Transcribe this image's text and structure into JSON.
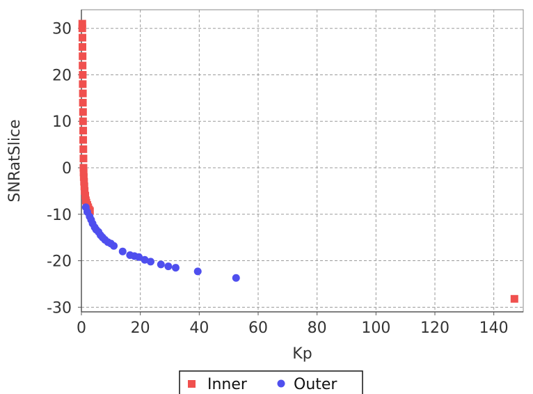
{
  "chart_data": {
    "type": "scatter",
    "title": "",
    "xlabel": "Kp",
    "ylabel": "SNRatSlice",
    "xlim": [
      0,
      150
    ],
    "ylim": [
      -31,
      34
    ],
    "xticks": [
      0,
      20,
      40,
      60,
      80,
      100,
      120,
      140
    ],
    "yticks": [
      -30,
      -20,
      -10,
      0,
      10,
      20,
      30
    ],
    "grid": true,
    "legend_position": "bottom",
    "series": [
      {
        "name": "Inner",
        "marker": "square",
        "color": "#f0504e",
        "points": [
          [
            0.3,
            31
          ],
          [
            0.3,
            30
          ],
          [
            0.35,
            28
          ],
          [
            0.35,
            26
          ],
          [
            0.4,
            24
          ],
          [
            0.4,
            22
          ],
          [
            0.45,
            20
          ],
          [
            0.45,
            18
          ],
          [
            0.5,
            16
          ],
          [
            0.5,
            14
          ],
          [
            0.55,
            12
          ],
          [
            0.55,
            10
          ],
          [
            0.6,
            8
          ],
          [
            0.6,
            6
          ],
          [
            0.65,
            4
          ],
          [
            0.7,
            2
          ],
          [
            0.7,
            0
          ],
          [
            0.75,
            -1
          ],
          [
            0.8,
            -2
          ],
          [
            0.9,
            -3
          ],
          [
            1.0,
            -4
          ],
          [
            1.1,
            -5
          ],
          [
            1.3,
            -6
          ],
          [
            1.5,
            -7
          ],
          [
            1.7,
            -7.5
          ],
          [
            2.0,
            -8
          ],
          [
            2.3,
            -8.5
          ],
          [
            2.6,
            -9
          ],
          [
            2.9,
            -9.3
          ],
          [
            147,
            -28.2
          ]
        ]
      },
      {
        "name": "Outer",
        "marker": "circle",
        "color": "#4f4fee",
        "points": [
          [
            1.5,
            -8.5
          ],
          [
            2.0,
            -9.5
          ],
          [
            2.8,
            -10.5
          ],
          [
            3.3,
            -11.2
          ],
          [
            3.8,
            -12
          ],
          [
            4.5,
            -12.8
          ],
          [
            5.0,
            -13.3
          ],
          [
            5.8,
            -13.8
          ],
          [
            6.5,
            -14.5
          ],
          [
            7.2,
            -15
          ],
          [
            8.0,
            -15.5
          ],
          [
            9.0,
            -16
          ],
          [
            10.0,
            -16.3
          ],
          [
            11.0,
            -16.8
          ],
          [
            14.0,
            -18
          ],
          [
            16.5,
            -18.8
          ],
          [
            18.0,
            -19
          ],
          [
            19.5,
            -19.2
          ],
          [
            21.5,
            -19.8
          ],
          [
            23.5,
            -20.2
          ],
          [
            27.0,
            -20.8
          ],
          [
            29.5,
            -21.2
          ],
          [
            32.0,
            -21.5
          ],
          [
            39.5,
            -22.3
          ],
          [
            52.5,
            -23.7
          ]
        ]
      }
    ]
  }
}
